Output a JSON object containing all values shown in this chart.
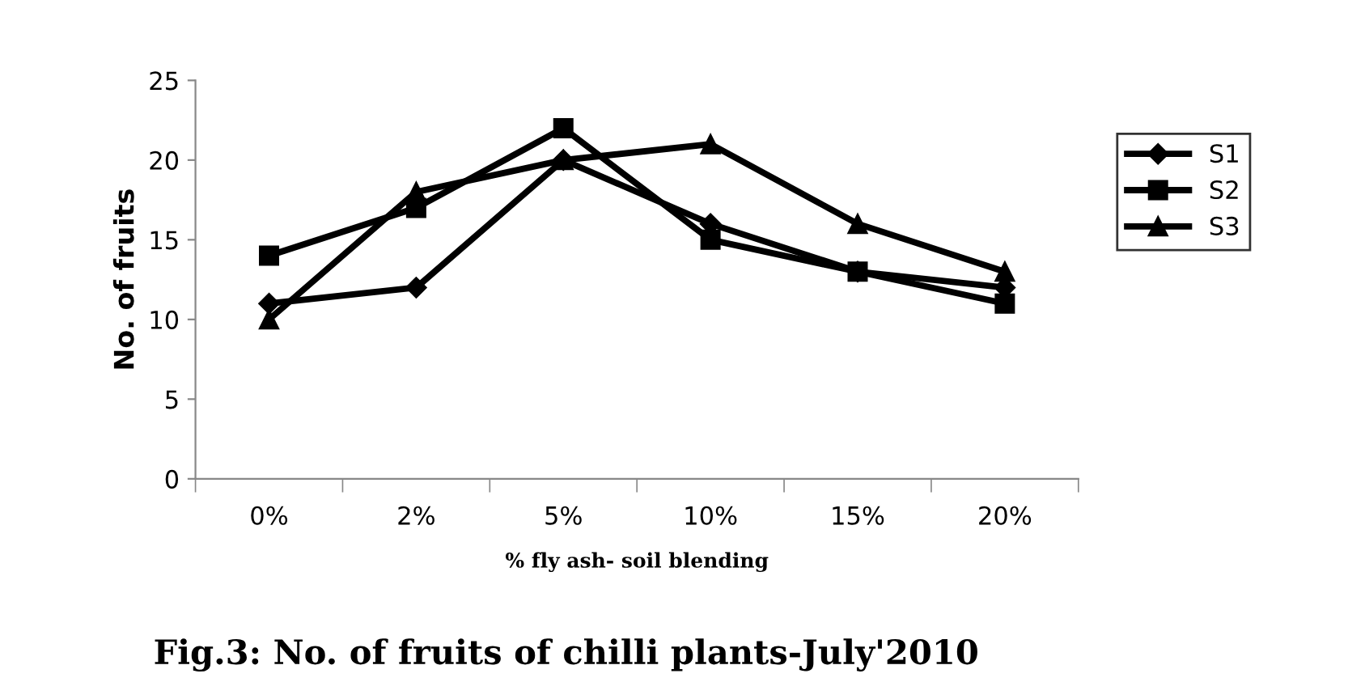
{
  "chart_data": {
    "type": "line",
    "title": "Fig.3: No. of fruits of chilli plants-July'2010",
    "xlabel": "% fly ash- soil blending",
    "ylabel": "No. of fruits",
    "categories": [
      "0%",
      "2%",
      "5%",
      "10%",
      "15%",
      "20%"
    ],
    "series": [
      {
        "name": "S1",
        "color": "#000000",
        "marker": "diamond",
        "values": [
          11,
          12,
          20,
          16,
          13,
          12
        ]
      },
      {
        "name": "S2",
        "color": "#000000",
        "marker": "square",
        "values": [
          14,
          17,
          22,
          15,
          13,
          11
        ]
      },
      {
        "name": "S3",
        "color": "#000000",
        "marker": "triangle",
        "values": [
          10,
          18,
          20,
          21,
          16,
          13
        ]
      }
    ],
    "ylim": [
      0,
      25
    ],
    "yticks": [
      0,
      5,
      10,
      15,
      20,
      25
    ],
    "grid": false,
    "legend": "right",
    "line_style": "solid"
  }
}
